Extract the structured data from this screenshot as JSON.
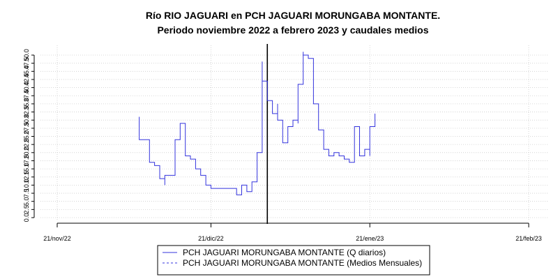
{
  "chart_data": {
    "type": "line",
    "title": "Río RIO JAGUARI en PCH JAGUARI MORUNGABA MONTANTE.",
    "subtitle": "Periodo noviembre 2022 a febrero 2023 y caudales medios",
    "xlabel": "",
    "ylabel": "",
    "x_range": [
      "2022-11-21",
      "2023-02-21"
    ],
    "ylim": [
      0,
      52
    ],
    "x_ticks": [
      {
        "date": "2022-11-21",
        "label": "21/nov/22"
      },
      {
        "date": "2022-12-21",
        "label": "21/dic/22"
      },
      {
        "date": "2023-01-21",
        "label": "21/ene/23"
      },
      {
        "date": "2023-02-21",
        "label": "21/feb/23"
      }
    ],
    "y_ticks": [
      "0.0",
      "2.5",
      "5.0",
      "7.5",
      "10.0",
      "12.5",
      "15.0",
      "17.5",
      "20.0",
      "22.5",
      "25.0",
      "27.5",
      "30.0",
      "32.5",
      "35.0",
      "37.5",
      "40.0",
      "42.5",
      "45.0",
      "47.5",
      "50.0"
    ],
    "grid": true,
    "vline_date": "2023-01-01",
    "colors": {
      "series": "#3333dd",
      "vline": "#000000",
      "grid": "#cccccc"
    },
    "legend_position": "bottom",
    "legend": [
      {
        "label": "PCH JAGUARI MORUNGABA MONTANTE (Q diarios)",
        "style": "solid"
      },
      {
        "label": "PCH JAGUARI MORUNGABA MONTANTE (Medios Mensuales)",
        "style": "dashed"
      }
    ],
    "series": [
      {
        "name": "PCH JAGUARI MORUNGABA MONTANTE (Q diarios)",
        "step": true,
        "points": [
          [
            "2022-12-07",
            31
          ],
          [
            "2022-12-07",
            24
          ],
          [
            "2022-12-08",
            24
          ],
          [
            "2022-12-09",
            17
          ],
          [
            "2022-12-10",
            16
          ],
          [
            "2022-12-11",
            12
          ],
          [
            "2022-12-12",
            12
          ],
          [
            "2022-12-12",
            10
          ],
          [
            "2022-12-12",
            13
          ],
          [
            "2022-12-13",
            13
          ],
          [
            "2022-12-14",
            24
          ],
          [
            "2022-12-15",
            24
          ],
          [
            "2022-12-15",
            29
          ],
          [
            "2022-12-16",
            28
          ],
          [
            "2022-12-16",
            19
          ],
          [
            "2022-12-17",
            18
          ],
          [
            "2022-12-18",
            15
          ],
          [
            "2022-12-19",
            13
          ],
          [
            "2022-12-20",
            10
          ],
          [
            "2022-12-21",
            9
          ],
          [
            "2022-12-25",
            9
          ],
          [
            "2022-12-26",
            8
          ],
          [
            "2022-12-26",
            7
          ],
          [
            "2022-12-27",
            10
          ],
          [
            "2022-12-28",
            9
          ],
          [
            "2022-12-28",
            8
          ],
          [
            "2022-12-29",
            11
          ],
          [
            "2022-12-30",
            20
          ],
          [
            "2022-12-31",
            48
          ],
          [
            "2022-12-31",
            42
          ],
          [
            "2023-01-01",
            36
          ],
          [
            "2023-01-02",
            32
          ],
          [
            "2023-01-03",
            35
          ],
          [
            "2023-01-03",
            30
          ],
          [
            "2023-01-04",
            29
          ],
          [
            "2023-01-04",
            23
          ],
          [
            "2023-01-05",
            23
          ],
          [
            "2023-01-05",
            28
          ],
          [
            "2023-01-06",
            29
          ],
          [
            "2023-01-06",
            30
          ],
          [
            "2023-01-07",
            31
          ],
          [
            "2023-01-07",
            29
          ],
          [
            "2023-01-07",
            41
          ],
          [
            "2023-01-08",
            51
          ],
          [
            "2023-01-08",
            50
          ],
          [
            "2023-01-09",
            49
          ],
          [
            "2023-01-10",
            36
          ],
          [
            "2023-01-10",
            35
          ],
          [
            "2023-01-11",
            27
          ],
          [
            "2023-01-12",
            21
          ],
          [
            "2023-01-13",
            20
          ],
          [
            "2023-01-13",
            19
          ],
          [
            "2023-01-14",
            20
          ],
          [
            "2023-01-15",
            19
          ],
          [
            "2023-01-16",
            18
          ],
          [
            "2023-01-17",
            17
          ],
          [
            "2023-01-18",
            28
          ],
          [
            "2023-01-19",
            21
          ],
          [
            "2023-01-19",
            19
          ],
          [
            "2023-01-20",
            19
          ],
          [
            "2023-01-20",
            21
          ],
          [
            "2023-01-21",
            19
          ],
          [
            "2023-01-21",
            24
          ],
          [
            "2023-01-21",
            28
          ],
          [
            "2023-01-22",
            32
          ]
        ]
      }
    ]
  }
}
